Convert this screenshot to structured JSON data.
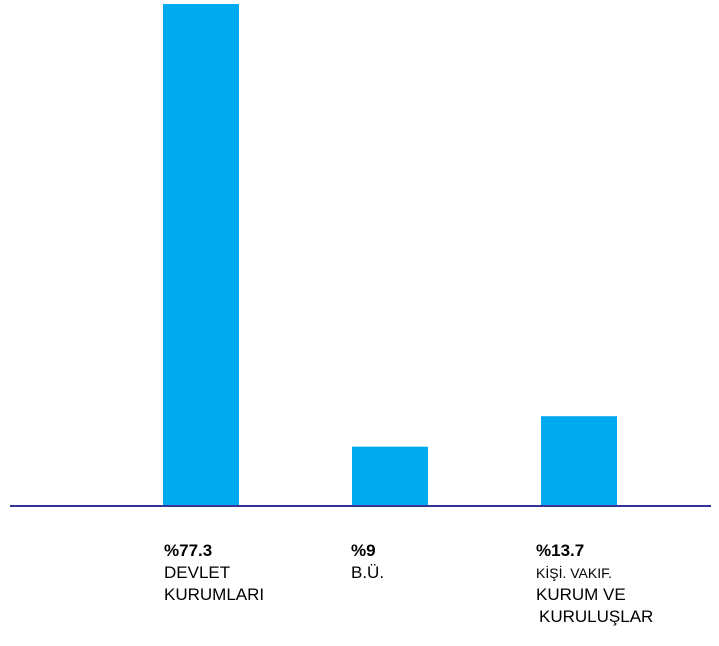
{
  "chart_data": {
    "type": "bar",
    "categories": [
      {
        "value_label": "%77.3",
        "lines": [
          "DEVLET",
          "KURUMLARI"
        ]
      },
      {
        "value_label": "%9",
        "lines": [
          "B.Ü."
        ]
      },
      {
        "value_label": "%13.7",
        "lines": [
          "KİŞİ. VAKIF.",
          "KURUM VE",
          "KURULUŞLAR"
        ]
      }
    ],
    "values": [
      77.3,
      9,
      13.7
    ],
    "title": "",
    "xlabel": "",
    "ylabel": "",
    "ylim": [
      0,
      77.3
    ],
    "grid": false,
    "legend": "none",
    "colors": {
      "bar": "#00aaee",
      "axis": "#333399"
    }
  }
}
